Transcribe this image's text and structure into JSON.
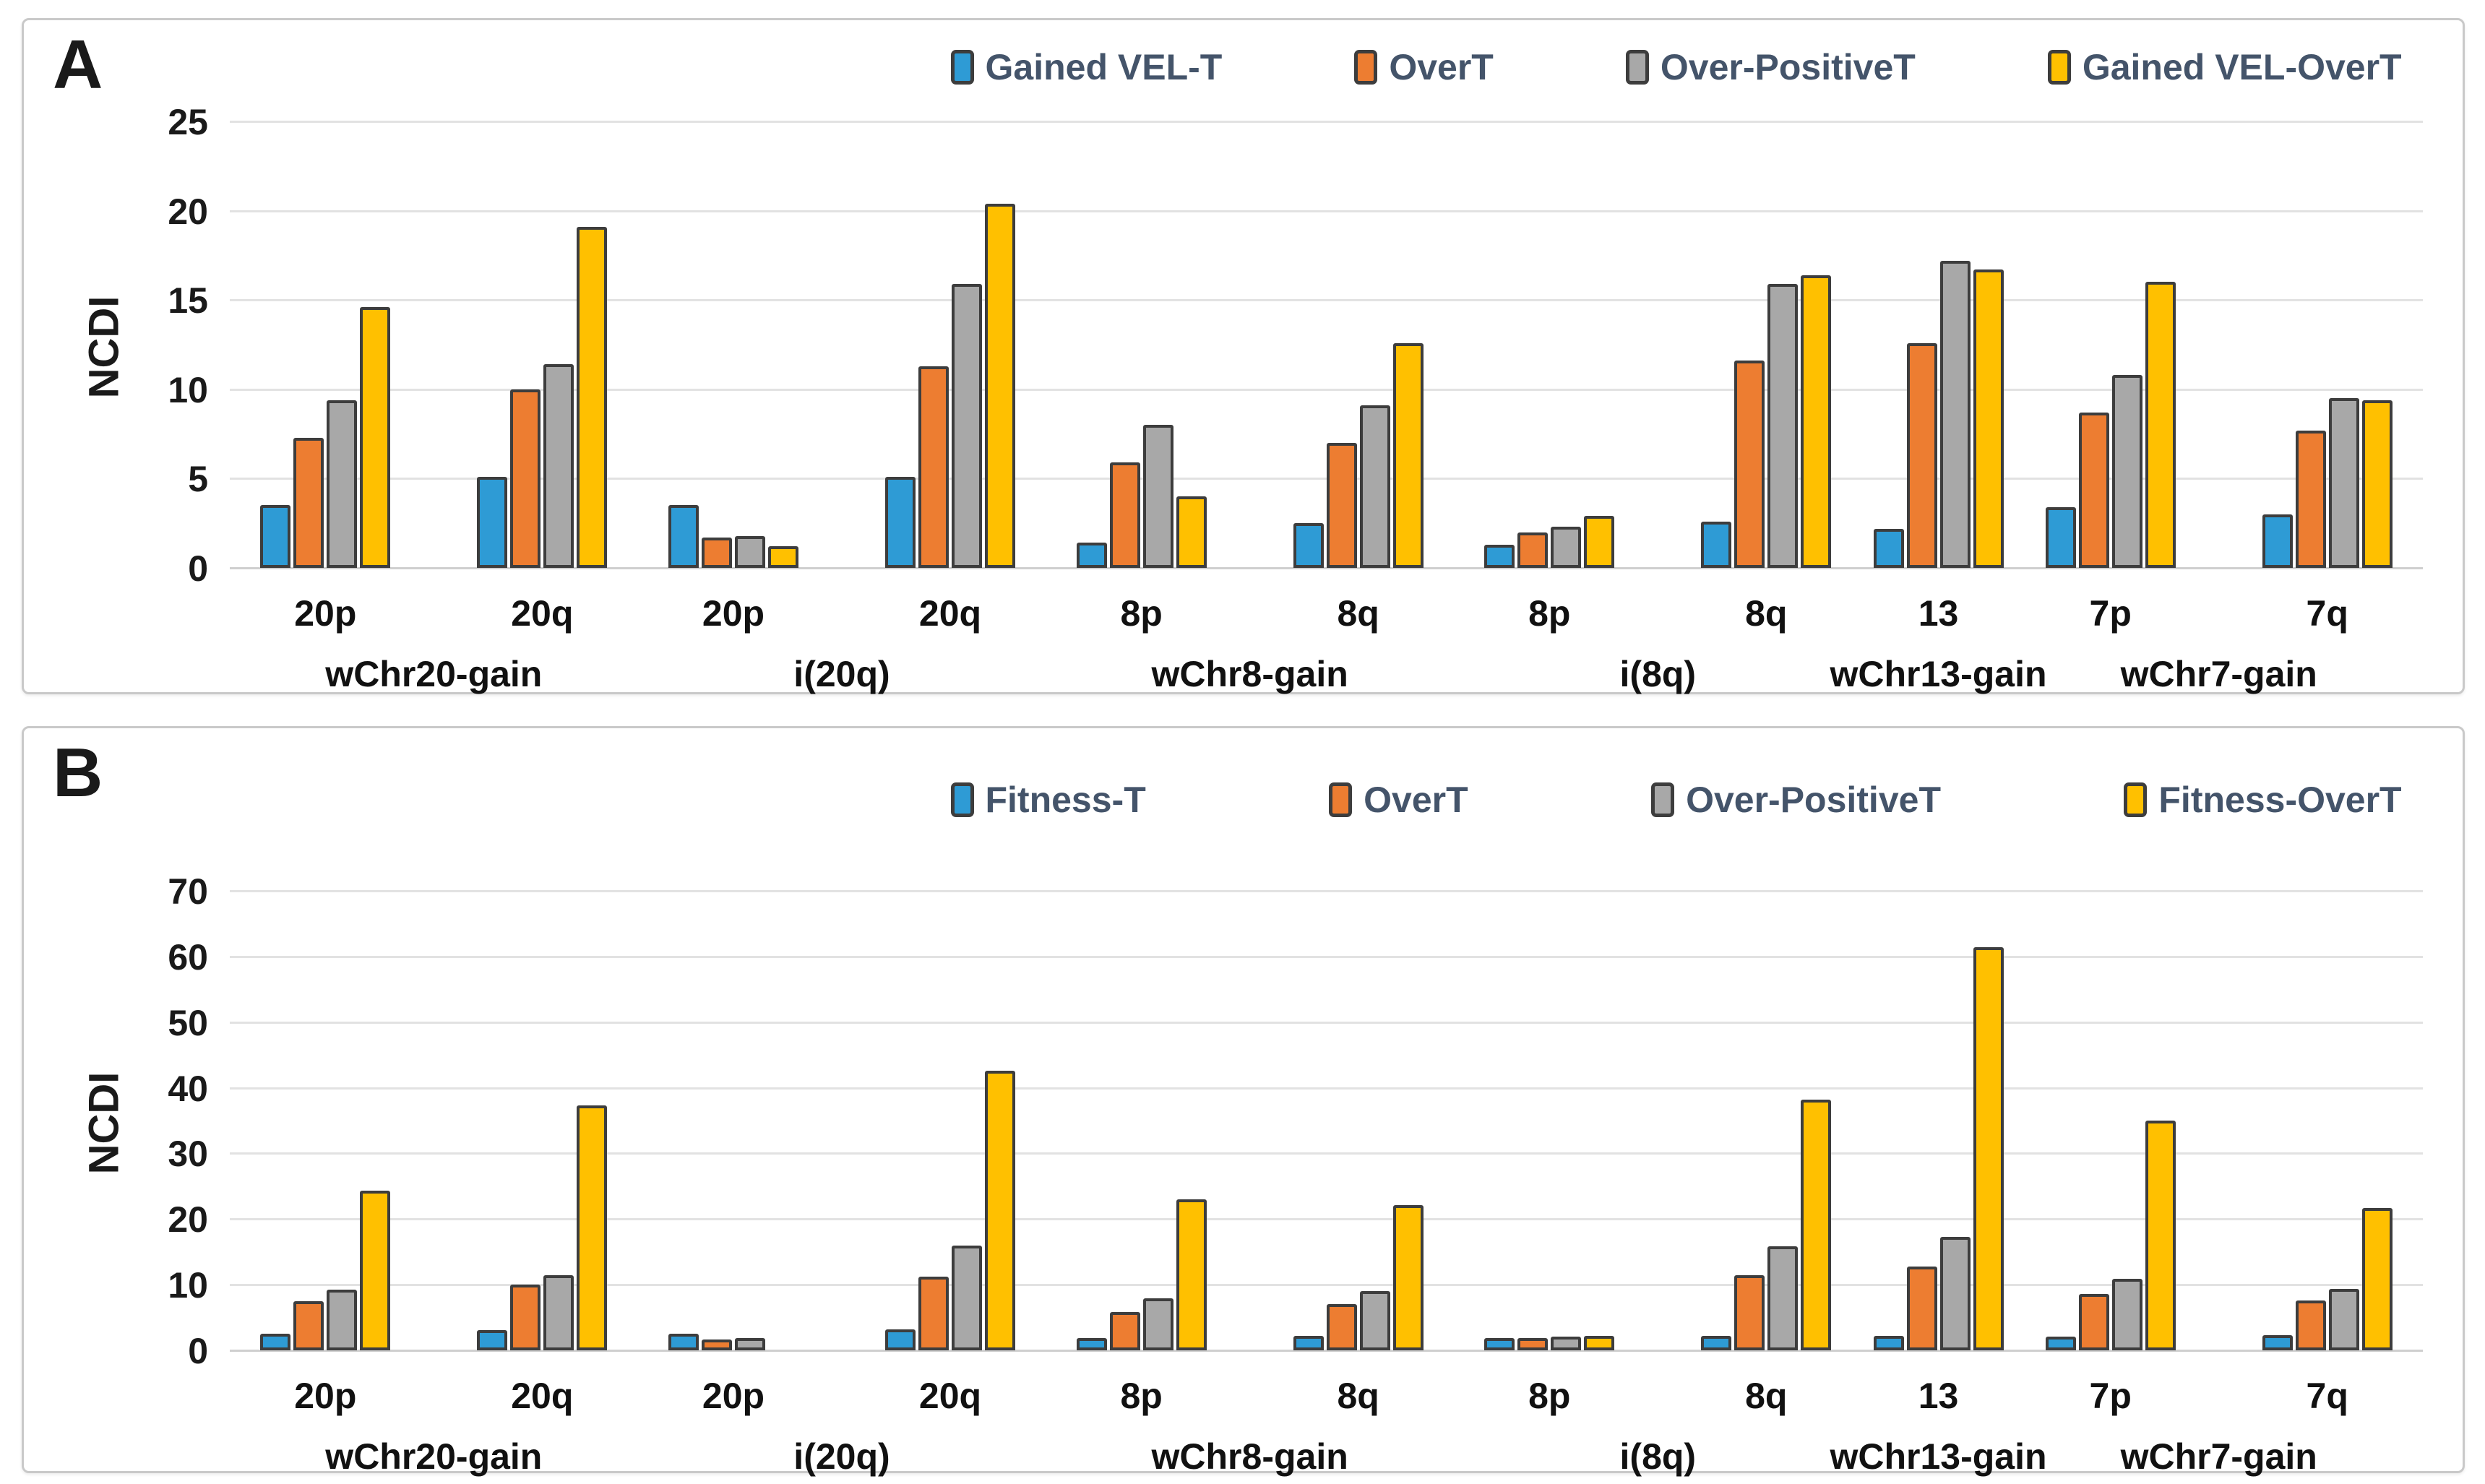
{
  "chart_data": [
    {
      "type": "bar",
      "panel_label": "A",
      "ylabel": "NCDI",
      "ylim": [
        0,
        25
      ],
      "yticks": [
        0,
        5,
        10,
        15,
        20,
        25
      ],
      "grid": true,
      "legend_position": "top",
      "series_names": [
        "Gained VEL-T",
        "OverT",
        "Over-PositiveT",
        "Gained VEL-OverT"
      ],
      "series_colors": [
        "#2E9BD5",
        "#ED7D31",
        "#A8A8A8",
        "#FFC000"
      ],
      "groups": [
        {
          "label": "wChr20-gain",
          "categories": [
            "20p",
            "20q"
          ],
          "values": [
            [
              3.5,
              7.3,
              9.4,
              14.6
            ],
            [
              5.1,
              10.0,
              11.4,
              19.1
            ]
          ]
        },
        {
          "label": "i(20q)",
          "categories": [
            "20p",
            "20q"
          ],
          "values": [
            [
              3.5,
              1.7,
              1.8,
              1.2
            ],
            [
              5.1,
              11.3,
              15.9,
              20.4
            ]
          ]
        },
        {
          "label": "wChr8-gain",
          "categories": [
            "8p",
            "8q"
          ],
          "values": [
            [
              1.4,
              5.9,
              8.0,
              4.0
            ],
            [
              2.5,
              7.0,
              9.1,
              12.6
            ]
          ]
        },
        {
          "label": "i(8q)",
          "categories": [
            "8p",
            "8q"
          ],
          "values": [
            [
              1.3,
              2.0,
              2.3,
              2.9
            ],
            [
              2.6,
              11.6,
              15.9,
              16.4
            ]
          ]
        },
        {
          "label": "wChr13-gain",
          "categories": [
            "13"
          ],
          "values": [
            [
              2.2,
              12.6,
              17.2,
              16.7
            ]
          ]
        },
        {
          "label": "wChr7-gain",
          "categories": [
            "7p",
            "7q"
          ],
          "values": [
            [
              3.4,
              8.7,
              10.8,
              16.0
            ],
            [
              3.0,
              7.7,
              9.5,
              9.4
            ]
          ]
        }
      ]
    },
    {
      "type": "bar",
      "panel_label": "B",
      "ylabel": "NCDI",
      "ylim": [
        0,
        70
      ],
      "yticks": [
        0,
        10,
        20,
        30,
        40,
        50,
        60,
        70
      ],
      "grid": true,
      "legend_position": "top",
      "series_names": [
        "Fitness-T",
        "OverT",
        "Over-PositiveT",
        "Fitness-OverT"
      ],
      "series_colors": [
        "#2E9BD5",
        "#ED7D31",
        "#A8A8A8",
        "#FFC000"
      ],
      "groups": [
        {
          "label": "wChr20-gain",
          "categories": [
            "20p",
            "20q"
          ],
          "values": [
            [
              2.5,
              7.5,
              9.3,
              24.3
            ],
            [
              3.1,
              10.0,
              11.4,
              37.3
            ]
          ]
        },
        {
          "label": "i(20q)",
          "categories": [
            "20p",
            "20q"
          ],
          "values": [
            [
              2.5,
              1.7,
              1.9,
              0
            ],
            [
              3.2,
              11.2,
              16.0,
              42.6
            ]
          ]
        },
        {
          "label": "wChr8-gain",
          "categories": [
            "8p",
            "8q"
          ],
          "values": [
            [
              1.9,
              5.8,
              7.9,
              23.0
            ],
            [
              2.2,
              7.0,
              9.0,
              22.1
            ]
          ]
        },
        {
          "label": "i(8q)",
          "categories": [
            "8p",
            "8q"
          ],
          "values": [
            [
              1.9,
              1.9,
              2.1,
              2.2
            ],
            [
              2.2,
              11.5,
              15.8,
              38.2
            ]
          ]
        },
        {
          "label": "wChr13-gain",
          "categories": [
            "13"
          ],
          "values": [
            [
              2.2,
              12.8,
              17.3,
              61.4
            ]
          ]
        },
        {
          "label": "wChr7-gain",
          "categories": [
            "7p",
            "7q"
          ],
          "values": [
            [
              2.1,
              8.6,
              10.9,
              35.0
            ],
            [
              2.3,
              7.6,
              9.4,
              21.7
            ]
          ]
        }
      ]
    }
  ]
}
